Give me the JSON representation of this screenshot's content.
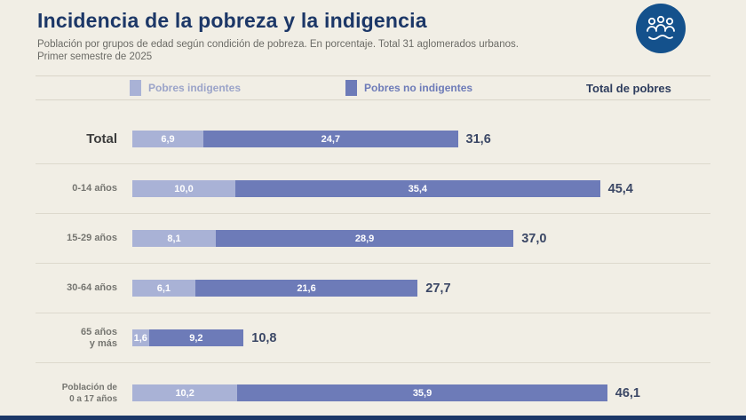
{
  "header": {
    "title": "Incidencia de la pobreza y la indigencia",
    "subtitle_line1": "Población por grupos de edad según condición de pobreza. En porcentaje. Total 31 aglomerados urbanos.",
    "subtitle_line2": "Primer semestre de 2025",
    "logo_icon": "people-group-icon",
    "logo_color": "#14518c"
  },
  "legend": {
    "items": [
      {
        "label": "Pobres indigentes",
        "swatch": "#a9b2d6",
        "text_color": "#9ba4c9"
      },
      {
        "label": "Pobres no indigentes",
        "swatch": "#6d7bb8",
        "text_color": "#6d7bb8"
      },
      {
        "label": "Total de pobres",
        "swatch": null,
        "text_color": "#2e3d5e"
      }
    ]
  },
  "chart_data": {
    "type": "bar",
    "orientation": "horizontal",
    "stacked": true,
    "title": "Incidencia de la pobreza y la indigencia",
    "xlabel": "",
    "ylabel": "",
    "value_unit": "percent",
    "xlim": [
      0,
      50
    ],
    "categories": [
      "Total",
      "0-14 años",
      "15-29 años",
      "30-64 años",
      "65 años\ny más",
      "Población de\n0 a 17 años"
    ],
    "series": [
      {
        "name": "Pobres indigentes",
        "color": "#a9b2d6",
        "values": [
          6.9,
          10.0,
          8.1,
          6.1,
          1.6,
          10.2
        ],
        "labels": [
          "6,9",
          "10,0",
          "8,1",
          "6,1",
          "1,6",
          "10,2"
        ]
      },
      {
        "name": "Pobres no indigentes",
        "color": "#6d7bb8",
        "values": [
          24.7,
          35.4,
          28.9,
          21.6,
          9.2,
          35.9
        ],
        "labels": [
          "24,7",
          "35,4",
          "28,9",
          "21,6",
          "9,2",
          "35,9"
        ]
      }
    ],
    "totals": {
      "name": "Total de pobres",
      "values": [
        31.6,
        45.4,
        37.0,
        27.7,
        10.8,
        46.1
      ],
      "labels": [
        "31,6",
        "45,4",
        "37,0",
        "27,7",
        "10,8",
        "46,1"
      ]
    }
  },
  "colors": {
    "background": "#f1eee5",
    "title": "#1c3767",
    "subtitle": "#6b6b66",
    "separator": "#ddd9cd",
    "total_text": "#3b4765",
    "footer_bar": "#1c3767"
  }
}
